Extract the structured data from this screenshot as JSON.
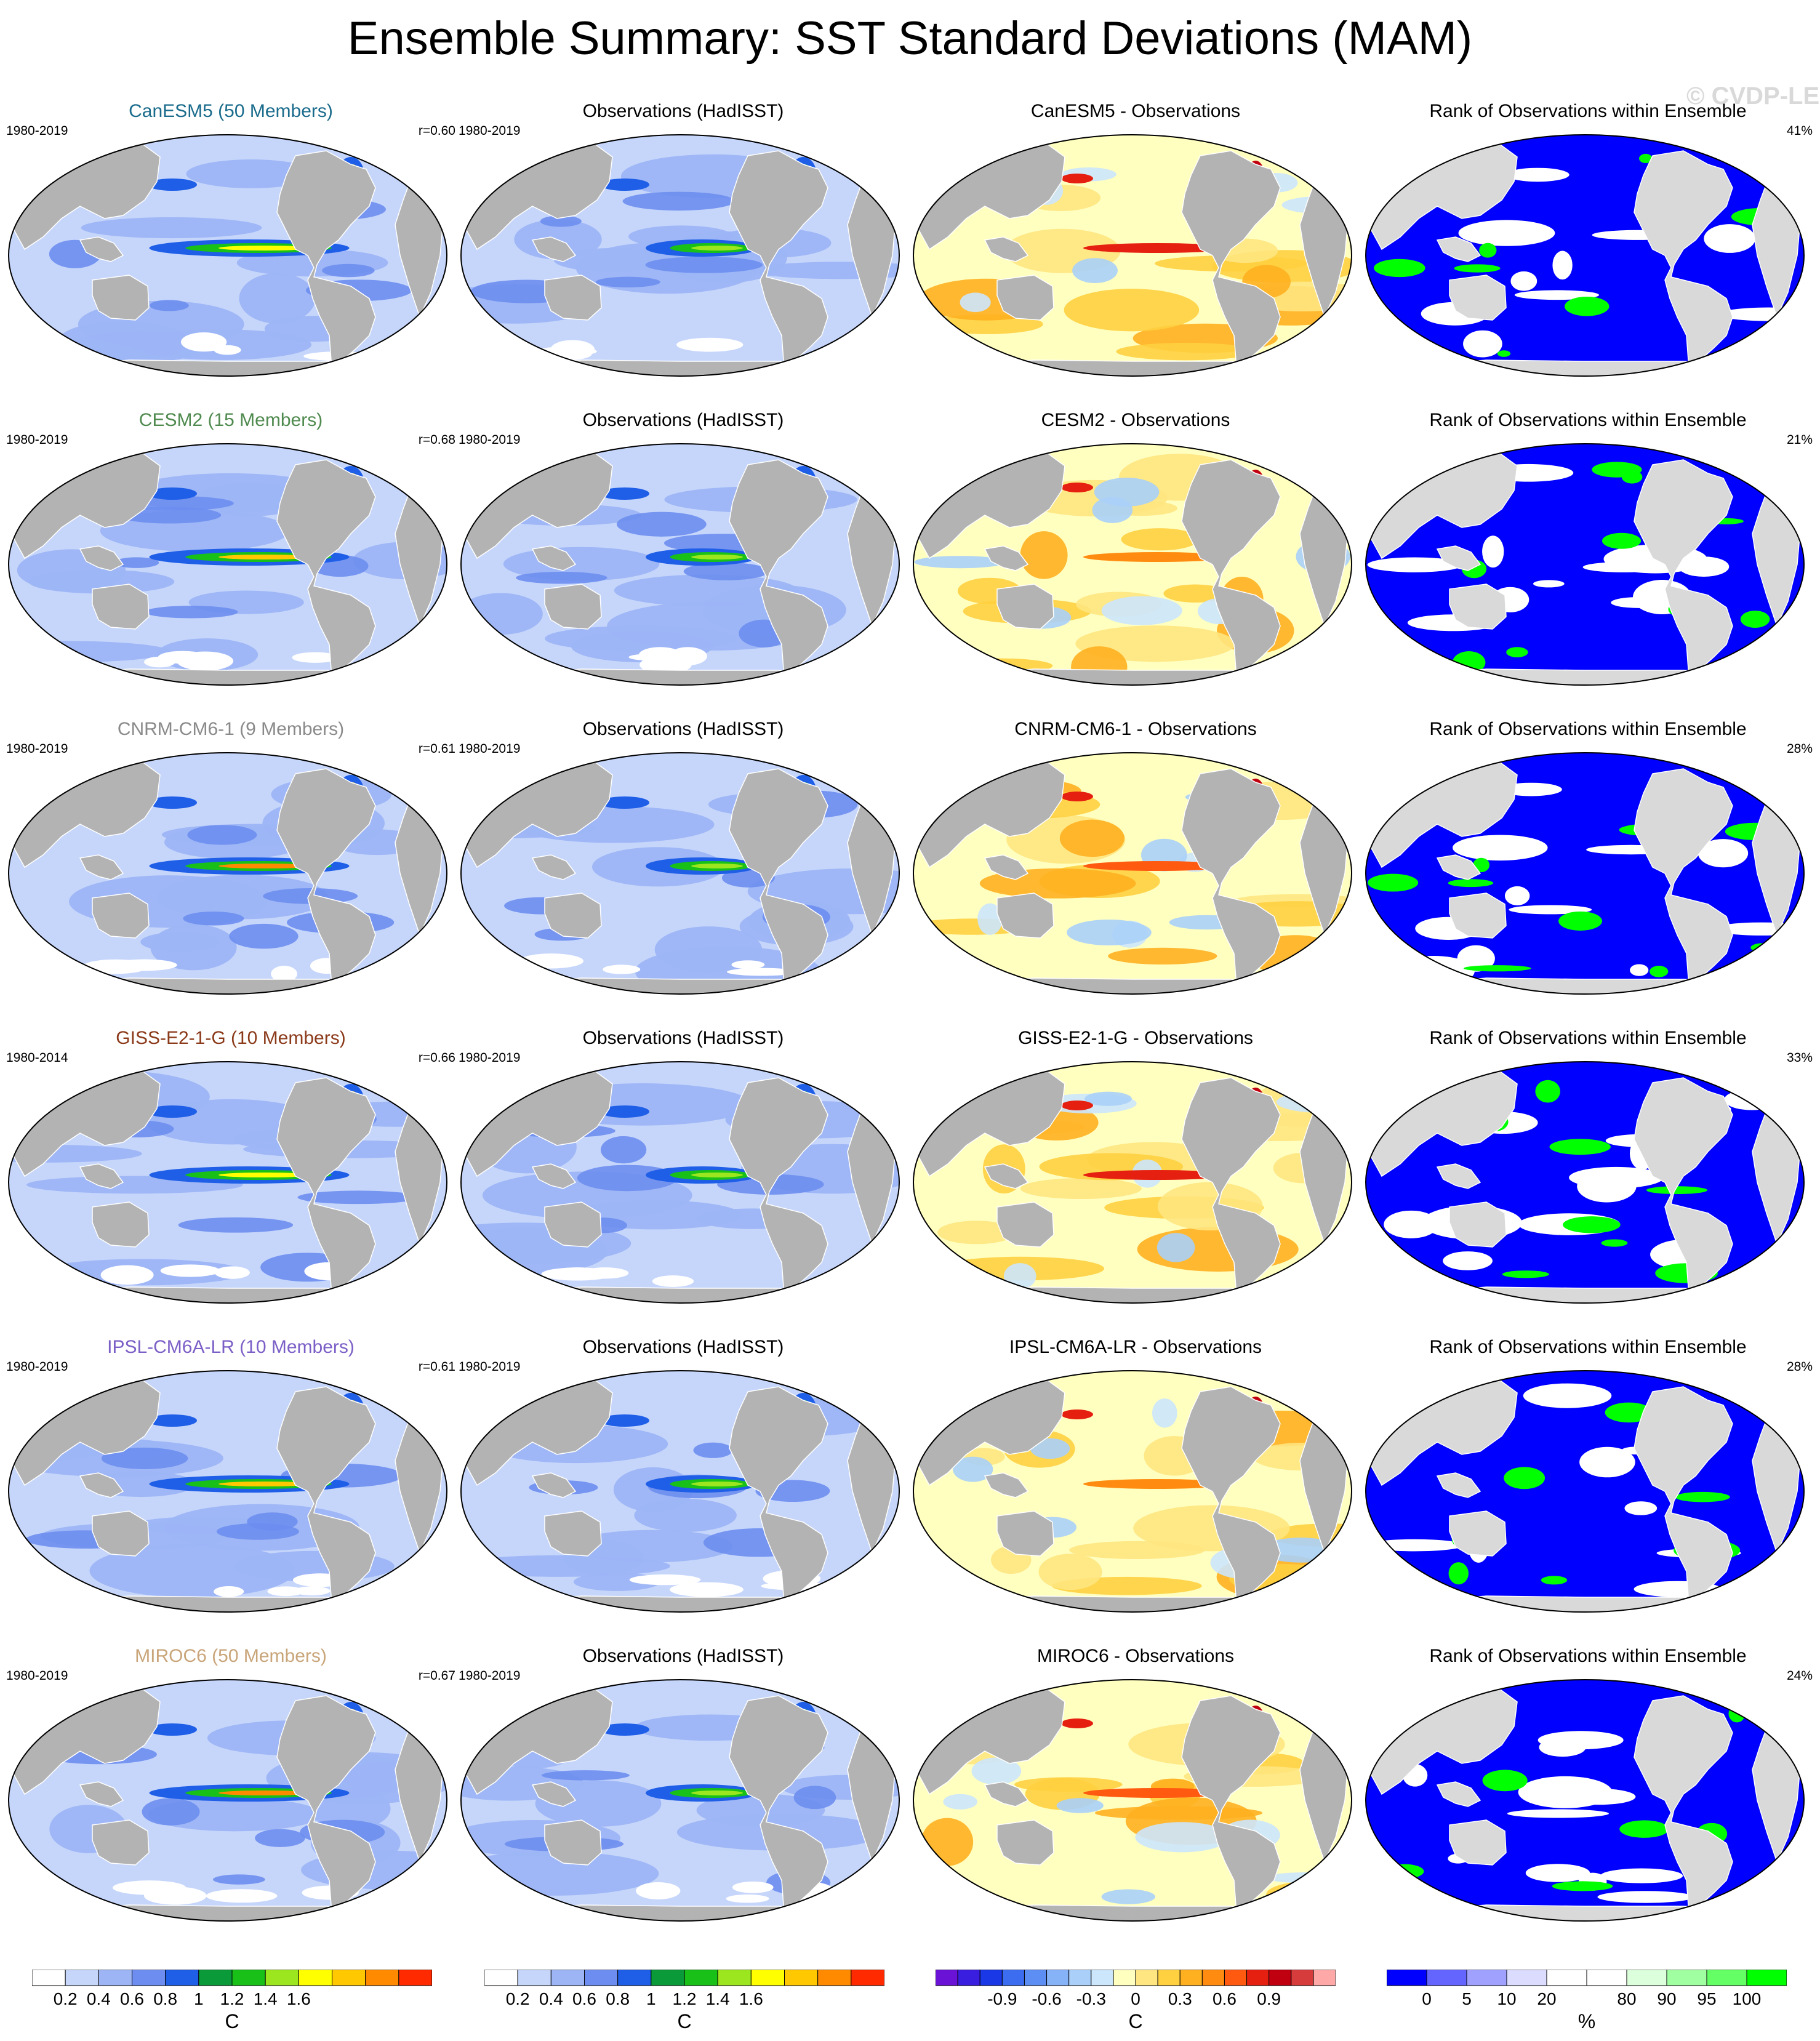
{
  "title": "Ensemble Summary: SST Standard Deviations (MAM)",
  "watermark": "© CVDP-LE",
  "column_titles": {
    "obs": "Observations (HadISST)",
    "rank": "Rank of Observations within Ensemble",
    "diff_suffix": " - Observations"
  },
  "rows": [
    {
      "model": "CanESM5 (50 Members)",
      "model_short": "CanESM5",
      "color": "#1a6b8c",
      "model_years": "1980-2019",
      "obs_years": "1980-2019",
      "r": "r=0.60",
      "diff_title": "CanESM5 - Observations",
      "rank_pct": "41%"
    },
    {
      "model": "CESM2 (15 Members)",
      "model_short": "CESM2",
      "color": "#4f8a4f",
      "model_years": "1980-2019",
      "obs_years": "1980-2019",
      "r": "r=0.68",
      "diff_title": "CESM2 - Observations",
      "rank_pct": "21%"
    },
    {
      "model": "CNRM-CM6-1 (9 Members)",
      "model_short": "CNRM-CM6-1",
      "color": "#8a8a8a",
      "model_years": "1980-2019",
      "obs_years": "1980-2019",
      "r": "r=0.61",
      "diff_title": "CNRM-CM6-1 - Observations",
      "rank_pct": "28%"
    },
    {
      "model": "GISS-E2-1-G (10 Members)",
      "model_short": "GISS-E2-1-G",
      "color": "#8b3a1a",
      "model_years": "1980-2014",
      "obs_years": "1980-2019",
      "r": "r=0.66",
      "diff_title": "GISS-E2-1-G - Observations",
      "rank_pct": "33%"
    },
    {
      "model": "IPSL-CM6A-LR (10 Members)",
      "model_short": "IPSL-CM6A-LR",
      "color": "#7b5fc7",
      "model_years": "1980-2019",
      "obs_years": "1980-2019",
      "r": "r=0.61",
      "diff_title": "IPSL-CM6A-LR - Observations",
      "rank_pct": "28%"
    },
    {
      "model": "MIROC6 (50 Members)",
      "model_short": "MIROC6",
      "color": "#c9a57a",
      "model_years": "1980-2019",
      "obs_years": "1980-2019",
      "r": "r=0.67",
      "diff_title": "MIROC6 - Observations",
      "rank_pct": "24%"
    }
  ],
  "colorbars": {
    "sd": {
      "colors": [
        "#ffffff",
        "#c6d6fb",
        "#9db5f5",
        "#6d8ef0",
        "#1f5fe8",
        "#0a9a3a",
        "#18c018",
        "#9be61e",
        "#ffff00",
        "#ffc800",
        "#ff8a00",
        "#ff2a00"
      ],
      "labels": [
        "0.2",
        "0.4",
        "0.6",
        "0.8",
        "1",
        "1.2",
        "1.4",
        "1.6"
      ],
      "unit": "C"
    },
    "diff": {
      "colors": [
        "#6a12d6",
        "#3a1ee0",
        "#1a38e6",
        "#3c6cf0",
        "#5c8ef4",
        "#86b2f8",
        "#aad0fa",
        "#cce6fc",
        "#ffffc0",
        "#ffe680",
        "#ffd040",
        "#ffb020",
        "#ff8c10",
        "#ff5a10",
        "#e62010",
        "#c00010",
        "#d63c3c",
        "#ffa8a8"
      ],
      "labels": [
        "-0.9",
        "-0.6",
        "-0.3",
        "0",
        "0.3",
        "0.6",
        "0.9"
      ],
      "unit": "C"
    },
    "rank": {
      "colors": [
        "#0000ff",
        "#6464ff",
        "#a0a0ff",
        "#dcdcff",
        "#ffffff",
        "#ffffff",
        "#dcffdc",
        "#a0ffa0",
        "#64ff64",
        "#00ff00"
      ],
      "labels": [
        "0",
        "5",
        "10",
        "20",
        "80",
        "90",
        "95",
        "100"
      ],
      "unit": "%"
    }
  }
}
